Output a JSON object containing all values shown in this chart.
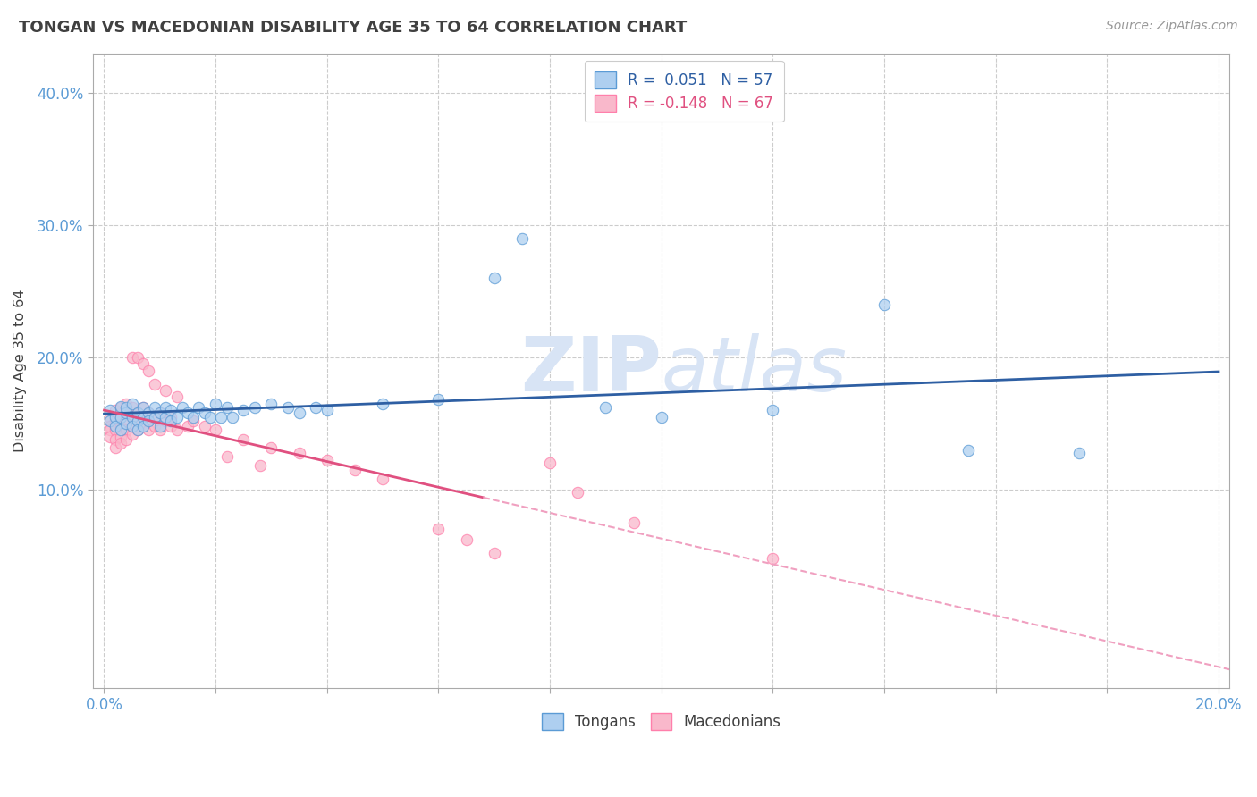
{
  "title": "TONGAN VS MACEDONIAN DISABILITY AGE 35 TO 64 CORRELATION CHART",
  "source_text": "Source: ZipAtlas.com",
  "ylabel": "Disability Age 35 to 64",
  "xlim": [
    -0.002,
    0.202
  ],
  "ylim": [
    -0.05,
    0.43
  ],
  "xtick_positions": [
    0.0,
    0.02,
    0.04,
    0.06,
    0.08,
    0.1,
    0.12,
    0.14,
    0.16,
    0.18,
    0.2
  ],
  "ytick_positions": [
    0.1,
    0.2,
    0.3,
    0.4
  ],
  "yticklabels": [
    "10.0%",
    "20.0%",
    "30.0%",
    "40.0%"
  ],
  "legend_r_tongan": "0.051",
  "legend_n_tongan": "57",
  "legend_r_macedonian": "-0.148",
  "legend_n_macedonian": "67",
  "tongan_fill_color": "#AECFF0",
  "macedonian_fill_color": "#F9B8CB",
  "tongan_edge_color": "#5B9BD5",
  "macedonian_edge_color": "#FF7FAB",
  "tongan_line_color": "#2E5FA3",
  "macedonian_line_color": "#E05080",
  "macedonian_dash_color": "#F0A0C0",
  "background_color": "#FFFFFF",
  "grid_color": "#CCCCCC",
  "title_color": "#404040",
  "watermark_color": "#D8E4F5",
  "axis_label_color": "#5B9BD5",
  "tongan_scatter": [
    [
      0.001,
      0.16
    ],
    [
      0.001,
      0.152
    ],
    [
      0.002,
      0.155
    ],
    [
      0.002,
      0.148
    ],
    [
      0.003,
      0.163
    ],
    [
      0.003,
      0.145
    ],
    [
      0.003,
      0.155
    ],
    [
      0.004,
      0.158
    ],
    [
      0.004,
      0.15
    ],
    [
      0.004,
      0.162
    ],
    [
      0.005,
      0.155
    ],
    [
      0.005,
      0.148
    ],
    [
      0.005,
      0.165
    ],
    [
      0.006,
      0.152
    ],
    [
      0.006,
      0.158
    ],
    [
      0.006,
      0.145
    ],
    [
      0.007,
      0.162
    ],
    [
      0.007,
      0.155
    ],
    [
      0.007,
      0.148
    ],
    [
      0.008,
      0.158
    ],
    [
      0.008,
      0.152
    ],
    [
      0.009,
      0.155
    ],
    [
      0.009,
      0.162
    ],
    [
      0.01,
      0.158
    ],
    [
      0.01,
      0.148
    ],
    [
      0.011,
      0.155
    ],
    [
      0.011,
      0.162
    ],
    [
      0.012,
      0.152
    ],
    [
      0.012,
      0.16
    ],
    [
      0.013,
      0.155
    ],
    [
      0.014,
      0.162
    ],
    [
      0.015,
      0.158
    ],
    [
      0.016,
      0.155
    ],
    [
      0.017,
      0.162
    ],
    [
      0.018,
      0.158
    ],
    [
      0.019,
      0.155
    ],
    [
      0.02,
      0.165
    ],
    [
      0.021,
      0.155
    ],
    [
      0.022,
      0.162
    ],
    [
      0.023,
      0.155
    ],
    [
      0.025,
      0.16
    ],
    [
      0.027,
      0.162
    ],
    [
      0.03,
      0.165
    ],
    [
      0.033,
      0.162
    ],
    [
      0.035,
      0.158
    ],
    [
      0.038,
      0.162
    ],
    [
      0.04,
      0.16
    ],
    [
      0.05,
      0.165
    ],
    [
      0.06,
      0.168
    ],
    [
      0.07,
      0.26
    ],
    [
      0.075,
      0.29
    ],
    [
      0.09,
      0.162
    ],
    [
      0.1,
      0.155
    ],
    [
      0.12,
      0.16
    ],
    [
      0.14,
      0.24
    ],
    [
      0.155,
      0.13
    ],
    [
      0.175,
      0.128
    ]
  ],
  "macedonian_scatter": [
    [
      0.001,
      0.155
    ],
    [
      0.001,
      0.148
    ],
    [
      0.001,
      0.145
    ],
    [
      0.001,
      0.14
    ],
    [
      0.002,
      0.16
    ],
    [
      0.002,
      0.152
    ],
    [
      0.002,
      0.148
    ],
    [
      0.002,
      0.145
    ],
    [
      0.002,
      0.138
    ],
    [
      0.002,
      0.132
    ],
    [
      0.003,
      0.162
    ],
    [
      0.003,
      0.155
    ],
    [
      0.003,
      0.148
    ],
    [
      0.003,
      0.14
    ],
    [
      0.003,
      0.135
    ],
    [
      0.004,
      0.165
    ],
    [
      0.004,
      0.158
    ],
    [
      0.004,
      0.152
    ],
    [
      0.004,
      0.145
    ],
    [
      0.004,
      0.138
    ],
    [
      0.005,
      0.162
    ],
    [
      0.005,
      0.155
    ],
    [
      0.005,
      0.148
    ],
    [
      0.005,
      0.142
    ],
    [
      0.005,
      0.2
    ],
    [
      0.006,
      0.158
    ],
    [
      0.006,
      0.152
    ],
    [
      0.006,
      0.145
    ],
    [
      0.006,
      0.2
    ],
    [
      0.007,
      0.162
    ],
    [
      0.007,
      0.155
    ],
    [
      0.007,
      0.148
    ],
    [
      0.007,
      0.195
    ],
    [
      0.008,
      0.158
    ],
    [
      0.008,
      0.152
    ],
    [
      0.008,
      0.145
    ],
    [
      0.008,
      0.19
    ],
    [
      0.009,
      0.155
    ],
    [
      0.009,
      0.148
    ],
    [
      0.009,
      0.18
    ],
    [
      0.01,
      0.158
    ],
    [
      0.01,
      0.145
    ],
    [
      0.011,
      0.152
    ],
    [
      0.011,
      0.175
    ],
    [
      0.012,
      0.148
    ],
    [
      0.012,
      0.155
    ],
    [
      0.013,
      0.145
    ],
    [
      0.013,
      0.17
    ],
    [
      0.015,
      0.148
    ],
    [
      0.016,
      0.152
    ],
    [
      0.018,
      0.148
    ],
    [
      0.02,
      0.145
    ],
    [
      0.022,
      0.125
    ],
    [
      0.025,
      0.138
    ],
    [
      0.028,
      0.118
    ],
    [
      0.03,
      0.132
    ],
    [
      0.035,
      0.128
    ],
    [
      0.04,
      0.122
    ],
    [
      0.045,
      0.115
    ],
    [
      0.05,
      0.108
    ],
    [
      0.06,
      0.07
    ],
    [
      0.065,
      0.062
    ],
    [
      0.07,
      0.052
    ],
    [
      0.08,
      0.12
    ],
    [
      0.085,
      0.098
    ],
    [
      0.095,
      0.075
    ],
    [
      0.12,
      0.048
    ]
  ],
  "macedonian_line_xrange": [
    0.0,
    0.068
  ],
  "macedonian_dash_xrange": [
    0.068,
    0.202
  ]
}
